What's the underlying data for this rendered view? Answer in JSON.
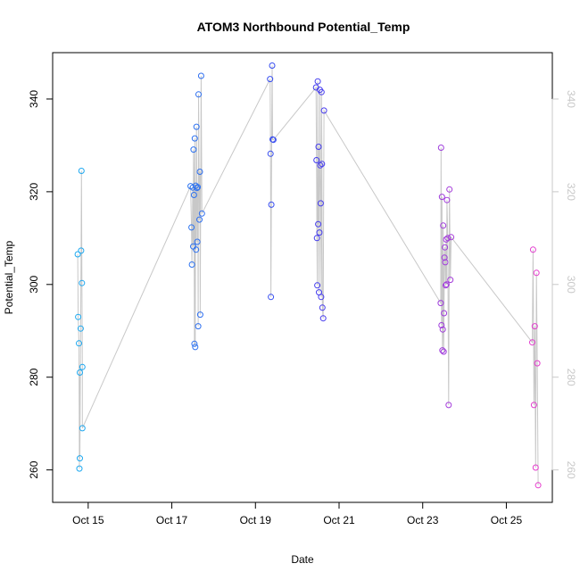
{
  "chart_data": {
    "type": "scatter",
    "title": "ATOM3 Northbound Potential_Temp",
    "xlabel": "Date",
    "ylabel": "Potential_Temp",
    "xlim": [
      14.15,
      26.1
    ],
    "ylim": [
      253,
      350
    ],
    "y2lim": [
      253,
      350
    ],
    "x_ticks": [
      {
        "value": 15,
        "label": "Oct 15"
      },
      {
        "value": 17,
        "label": "Oct 17"
      },
      {
        "value": 19,
        "label": "Oct 19"
      },
      {
        "value": 21,
        "label": "Oct 21"
      },
      {
        "value": 23,
        "label": "Oct 23"
      },
      {
        "value": 25,
        "label": "Oct 25"
      }
    ],
    "y_ticks": [
      260,
      280,
      300,
      320,
      340
    ],
    "y2_ticks": [
      260,
      280,
      300,
      320,
      340
    ],
    "grid": false,
    "line_color": "#c8c8c8",
    "color_start": "#1eaaf0",
    "color_mid": "#3c3cf0",
    "color_end": "#e63ccd",
    "x": [
      14.75,
      14.76,
      14.78,
      14.79,
      14.8,
      14.8,
      14.82,
      14.83,
      14.84,
      14.85,
      14.86,
      14.86,
      17.45,
      17.47,
      17.48,
      17.5,
      17.51,
      17.52,
      17.53,
      17.54,
      17.55,
      17.56,
      17.57,
      17.58,
      17.59,
      17.6,
      17.61,
      17.62,
      17.63,
      17.64,
      17.66,
      17.67,
      17.68,
      17.7,
      17.72,
      19.35,
      19.36,
      19.37,
      19.38,
      19.4,
      19.41,
      19.43,
      20.45,
      20.46,
      20.47,
      20.48,
      20.49,
      20.5,
      20.51,
      20.52,
      20.53,
      20.54,
      20.55,
      20.56,
      20.57,
      20.58,
      20.59,
      20.6,
      20.62,
      20.64,
      23.43,
      23.44,
      23.45,
      23.46,
      23.47,
      23.48,
      23.49,
      23.5,
      23.51,
      23.52,
      23.53,
      23.54,
      23.55,
      23.56,
      23.57,
      23.58,
      23.6,
      23.62,
      23.64,
      23.66,
      23.68,
      25.62,
      25.64,
      25.66,
      25.68,
      25.7,
      25.72,
      25.74,
      25.76
    ],
    "y": [
      306.5,
      293.0,
      287.3,
      260.3,
      281.0,
      262.5,
      290.5,
      307.3,
      324.5,
      300.3,
      282.2,
      269.0,
      321.2,
      312.3,
      304.3,
      320.9,
      308.2,
      329.1,
      319.3,
      287.2,
      331.5,
      286.5,
      321.3,
      307.5,
      334.0,
      320.8,
      309.2,
      321.0,
      291.0,
      341.0,
      314.0,
      324.3,
      293.5,
      345.0,
      315.3,
      344.3,
      328.2,
      297.3,
      317.2,
      347.2,
      331.3,
      331.2,
      342.5,
      326.8,
      310.0,
      299.8,
      343.8,
      313.0,
      329.7,
      298.3,
      311.2,
      342.0,
      325.7,
      317.5,
      297.3,
      341.5,
      326.0,
      295.0,
      292.7,
      337.5,
      296.0,
      329.5,
      291.2,
      318.9,
      285.8,
      290.3,
      312.7,
      285.5,
      293.8,
      305.8,
      308.0,
      304.8,
      299.8,
      309.7,
      300.0,
      318.2,
      310.0,
      274.0,
      320.5,
      301.0,
      310.2,
      287.5,
      307.5,
      274.0,
      291.0,
      260.5,
      302.5,
      283.0,
      256.7
    ]
  }
}
